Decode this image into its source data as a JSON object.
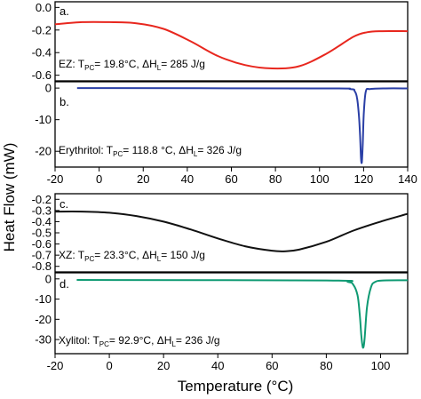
{
  "figure": {
    "ylabel": "Heat Flow (mW)",
    "xlabel": "Temperature (°C)"
  },
  "chart_data": [
    {
      "type": "line",
      "panel_label": "a.",
      "annotation": {
        "sample": "EZ: T",
        "sub": "PC",
        "rest": "= 19.8°C, ΔH",
        "sub2": "L",
        "rest2": "= 285 J/g"
      },
      "color": "#e8271e",
      "xlim": [
        -20,
        110
      ],
      "ylim": [
        -0.65,
        0.05
      ],
      "y_ticks": [
        "0.0",
        "-0.2",
        "-0.4",
        "-0.6"
      ],
      "y_tick_values": [
        0.0,
        -0.2,
        -0.4,
        -0.6
      ],
      "x": [
        -20,
        -10,
        0,
        10,
        20,
        30,
        40,
        50,
        60,
        70,
        80,
        90,
        95,
        100,
        110
      ],
      "y": [
        -0.15,
        -0.13,
        -0.13,
        -0.14,
        -0.19,
        -0.3,
        -0.43,
        -0.51,
        -0.54,
        -0.52,
        -0.41,
        -0.26,
        -0.22,
        -0.21,
        -0.21
      ]
    },
    {
      "type": "line",
      "panel_label": "b.",
      "annotation": {
        "sample": "Erythritol: T",
        "sub": "PC",
        "rest": "= 118.8 °C, ΔH",
        "sub2": "L",
        "rest2": "= 326 J/g"
      },
      "color": "#2a3fa6",
      "xlim": [
        -20,
        140
      ],
      "ylim": [
        -25,
        2
      ],
      "y_ticks": [
        "0",
        "-10",
        "-20"
      ],
      "y_tick_values": [
        0,
        -10,
        -20
      ],
      "x_ticks": [
        "-20",
        "0",
        "20",
        "40",
        "60",
        "80",
        "100",
        "120",
        "140"
      ],
      "x_tick_values": [
        -20,
        0,
        20,
        40,
        60,
        80,
        100,
        120,
        140
      ],
      "x": [
        -10,
        100,
        114,
        116,
        117,
        117.8,
        118.4,
        118.8,
        119.2,
        119.6,
        120.1,
        121,
        123,
        130,
        140
      ],
      "y": [
        0,
        -0.1,
        -0.3,
        -1.0,
        -3.0,
        -8.0,
        -15.0,
        -22.0,
        -23.5,
        -18.0,
        -8.0,
        -1.0,
        -0.3,
        -0.1,
        -0.1
      ]
    },
    {
      "type": "line",
      "panel_label": "c.",
      "annotation": {
        "sample": "XZ: T",
        "sub": "PC",
        "rest": "= 23.3°C, ΔH",
        "sub2": "L",
        "rest2": "= 150 J/g"
      },
      "color": "#111111",
      "xlim": [
        -20,
        110
      ],
      "ylim": [
        -0.85,
        -0.15
      ],
      "y_ticks": [
        "-0.2",
        "-0.3",
        "-0.4",
        "-0.5",
        "-0.6",
        "-0.7",
        "-0.8"
      ],
      "y_tick_values": [
        -0.2,
        -0.3,
        -0.4,
        -0.5,
        -0.6,
        -0.7,
        -0.8
      ],
      "x": [
        -20,
        -10,
        0,
        10,
        20,
        30,
        40,
        50,
        60,
        65,
        70,
        80,
        90,
        100,
        110
      ],
      "y": [
        -0.31,
        -0.31,
        -0.32,
        -0.35,
        -0.4,
        -0.47,
        -0.55,
        -0.62,
        -0.66,
        -0.665,
        -0.65,
        -0.58,
        -0.48,
        -0.4,
        -0.33
      ]
    },
    {
      "type": "line",
      "panel_label": "d.",
      "annotation": {
        "sample": "Xylitol: T",
        "sub": "PC",
        "rest": "= 92.9°C, ΔH",
        "sub2": "L",
        "rest2": "= 236 J/g"
      },
      "color": "#0f9a73",
      "xlim": [
        -20,
        110
      ],
      "ylim": [
        -37,
        3
      ],
      "y_ticks": [
        "0",
        "-10",
        "-20",
        "-30"
      ],
      "y_tick_values": [
        0,
        -10,
        -20,
        -30
      ],
      "x_ticks": [
        "-20",
        "0",
        "20",
        "40",
        "60",
        "80",
        "100"
      ],
      "x_tick_values": [
        -20,
        0,
        20,
        40,
        60,
        80,
        100
      ],
      "x": [
        -12,
        80,
        88,
        90,
        91.5,
        92.3,
        92.9,
        93.5,
        94.1,
        95,
        96.5,
        98,
        101,
        110
      ],
      "y": [
        -0.5,
        -0.8,
        -1.5,
        -3.0,
        -8.0,
        -17.0,
        -28.0,
        -34.0,
        -30.0,
        -14.0,
        -4.0,
        -1.5,
        -0.8,
        -0.7
      ]
    }
  ]
}
